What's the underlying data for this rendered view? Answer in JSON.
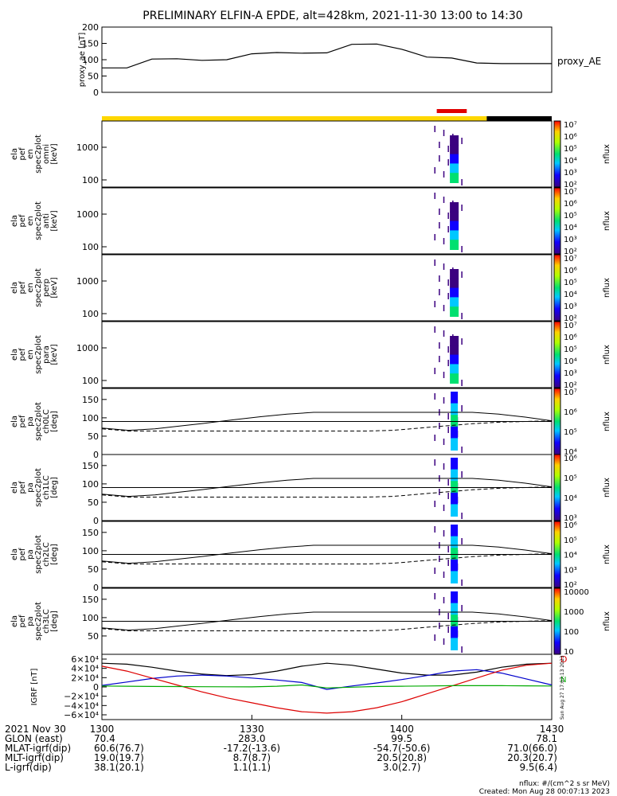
{
  "title": "PRELIMINARY ELFIN-A EPDE, alt=428km, 2021-11-30 13:00 to 14:30",
  "colors": {
    "orbit_bar_day": "#ffd700",
    "orbit_bar_night": "#000000",
    "science_zone": "#e00000",
    "bz_line": "#00aa00",
    "bx_line": "#0000cc",
    "by_line": "#dd0000",
    "bt_line": "#000000"
  },
  "chart_data": [
    {
      "type": "line",
      "id": "proxy_ae",
      "ylabel": "proxy_ae [nT]",
      "legend": "proxy_AE",
      "ylim": [
        0,
        200
      ],
      "yticks": [
        "200",
        "150",
        "100",
        "50",
        "0"
      ],
      "series": [
        {
          "name": "proxy_AE",
          "x": [
            0,
            5,
            10,
            15,
            20,
            25,
            30,
            35,
            40,
            45,
            50,
            55,
            60,
            65,
            70,
            75,
            80,
            85,
            90
          ],
          "values": [
            75,
            75,
            102,
            103,
            98,
            100,
            118,
            122,
            120,
            121,
            147,
            148,
            132,
            108,
            105,
            90,
            88,
            88,
            88
          ]
        }
      ]
    },
    {
      "type": "heatmap",
      "id": "omni",
      "ylabel": [
        "ela",
        "pef",
        "en",
        "spec2plot",
        "omni",
        "[keV]"
      ],
      "yticks": [
        "1000",
        "100"
      ],
      "zlabel": "nflux",
      "zticks": [
        "10⁷",
        "10⁶",
        "10⁵",
        "10⁴",
        "10³",
        "10²"
      ]
    },
    {
      "type": "heatmap",
      "id": "anti",
      "ylabel": [
        "ela",
        "pef",
        "en",
        "spec2plot",
        "anti",
        "[keV]"
      ],
      "yticks": [
        "1000",
        "100"
      ],
      "zlabel": "nflux",
      "zticks": [
        "10⁷",
        "10⁶",
        "10⁵",
        "10⁴",
        "10³",
        "10²"
      ]
    },
    {
      "type": "heatmap",
      "id": "perp",
      "ylabel": [
        "ela",
        "pef",
        "en",
        "spec2plot",
        "perp",
        "[keV]"
      ],
      "yticks": [
        "1000",
        "100"
      ],
      "zlabel": "nflux",
      "zticks": [
        "10⁷",
        "10⁶",
        "10⁵",
        "10⁴",
        "10³",
        "10²"
      ]
    },
    {
      "type": "heatmap",
      "id": "para",
      "ylabel": [
        "ela",
        "pef",
        "en",
        "spec2plot",
        "para",
        "[keV]"
      ],
      "yticks": [
        "1000",
        "100"
      ],
      "zlabel": "nflux",
      "zticks": [
        "10⁷",
        "10⁶",
        "10⁵",
        "10⁴",
        "10³",
        "10²"
      ]
    },
    {
      "type": "heatmap",
      "id": "ch0LC",
      "ylabel": [
        "ela",
        "pef",
        "pa",
        "spec2plot",
        "ch0LC",
        "[deg]"
      ],
      "yticks": [
        "150",
        "100",
        "50",
        "0"
      ],
      "zlabel": "nflux",
      "zticks": [
        "10⁷",
        "10⁶",
        "10⁵",
        "10⁴"
      ]
    },
    {
      "type": "heatmap",
      "id": "ch1LC",
      "ylabel": [
        "ela",
        "pef",
        "pa",
        "spec2plot",
        "ch1LC",
        "[deg]"
      ],
      "yticks": [
        "150",
        "100",
        "50",
        "0"
      ],
      "zlabel": "nflux",
      "zticks": [
        "10⁶",
        "10⁵",
        "10⁴",
        "10³"
      ]
    },
    {
      "type": "heatmap",
      "id": "ch2LC",
      "ylabel": [
        "ela",
        "pef",
        "pa",
        "spec2plot",
        "ch2LC",
        "[deg]"
      ],
      "yticks": [
        "150",
        "100",
        "50",
        "0"
      ],
      "zlabel": "nflux",
      "zticks": [
        "10⁶",
        "10⁵",
        "10⁴",
        "10³",
        "10²"
      ]
    },
    {
      "type": "heatmap",
      "id": "ch3LC",
      "ylabel": [
        "ela",
        "pef",
        "pa",
        "spec2plot",
        "ch3LC",
        "[deg]"
      ],
      "yticks": [
        "150",
        "100",
        "50"
      ],
      "zlabel": "nflux",
      "zticks": [
        "10000",
        "1000",
        "100",
        "10"
      ]
    },
    {
      "type": "line",
      "id": "igrf",
      "ylabel": "IGRF [nT]",
      "yticks": [
        "6×10⁴",
        "4×10⁴",
        "2×10⁴",
        "0",
        "−2×10⁴",
        "−4×10⁴",
        "−6×10⁴"
      ],
      "ylim": [
        -60000,
        60000
      ],
      "legend_letters": [
        "D",
        "N"
      ],
      "series": [
        {
          "name": "Bt",
          "values": [
            48000,
            46000,
            40000,
            32000,
            26000,
            23000,
            25000,
            32000,
            42000,
            48000,
            44000,
            36000,
            28000,
            24000,
            24000,
            30000,
            40000,
            46000,
            48000
          ]
        },
        {
          "name": "Bx",
          "values": [
            3000,
            10000,
            17000,
            22000,
            24000,
            22000,
            18000,
            14000,
            9000,
            -5000,
            2000,
            8000,
            15000,
            23000,
            32000,
            35000,
            28000,
            16000,
            4000
          ]
        },
        {
          "name": "By",
          "values": [
            42000,
            32000,
            18000,
            4000,
            -10000,
            -22000,
            -32000,
            -42000,
            -50000,
            -53000,
            -50000,
            -42000,
            -30000,
            -14000,
            2000,
            18000,
            34000,
            44000,
            48000
          ]
        },
        {
          "name": "Bz",
          "values": [
            2000,
            1500,
            1000,
            800,
            500,
            300,
            200,
            1500,
            4000,
            -2000,
            -500,
            1000,
            1500,
            2000,
            2500,
            2500,
            2500,
            2200,
            2000
          ]
        }
      ]
    }
  ],
  "xaxis": {
    "date_label": "2021 Nov 30",
    "ticks": [
      "1300",
      "1330",
      "1400",
      "1430"
    ],
    "rows": [
      {
        "label": "GLON (east)",
        "values": [
          "70.4",
          "283.0",
          "99.5",
          "78.1"
        ]
      },
      {
        "label": "MLAT-igrf(dip)",
        "values": [
          "60.6(76.7)",
          "-17.2(-13.6)",
          "-54.7(-50.6)",
          "71.0(66.0)"
        ]
      },
      {
        "label": "MLT-igrf(dip)",
        "values": [
          "19.0(19.7)",
          "8.7(8.7)",
          "20.5(20.8)",
          "20.3(20.7)"
        ]
      },
      {
        "label": "L-igrf(dip)",
        "values": [
          "38.1(20.1)",
          "1.1(1.1)",
          "3.0(2.7)",
          "9.5(6.4)"
        ]
      }
    ]
  },
  "footer": {
    "units": "nflux: #/(cm^2 s sr MeV)",
    "created": "Created: Mon Aug 28 00:07:13 2023",
    "side_stamp": "Sun Aug 27 17:07:13 2023"
  }
}
